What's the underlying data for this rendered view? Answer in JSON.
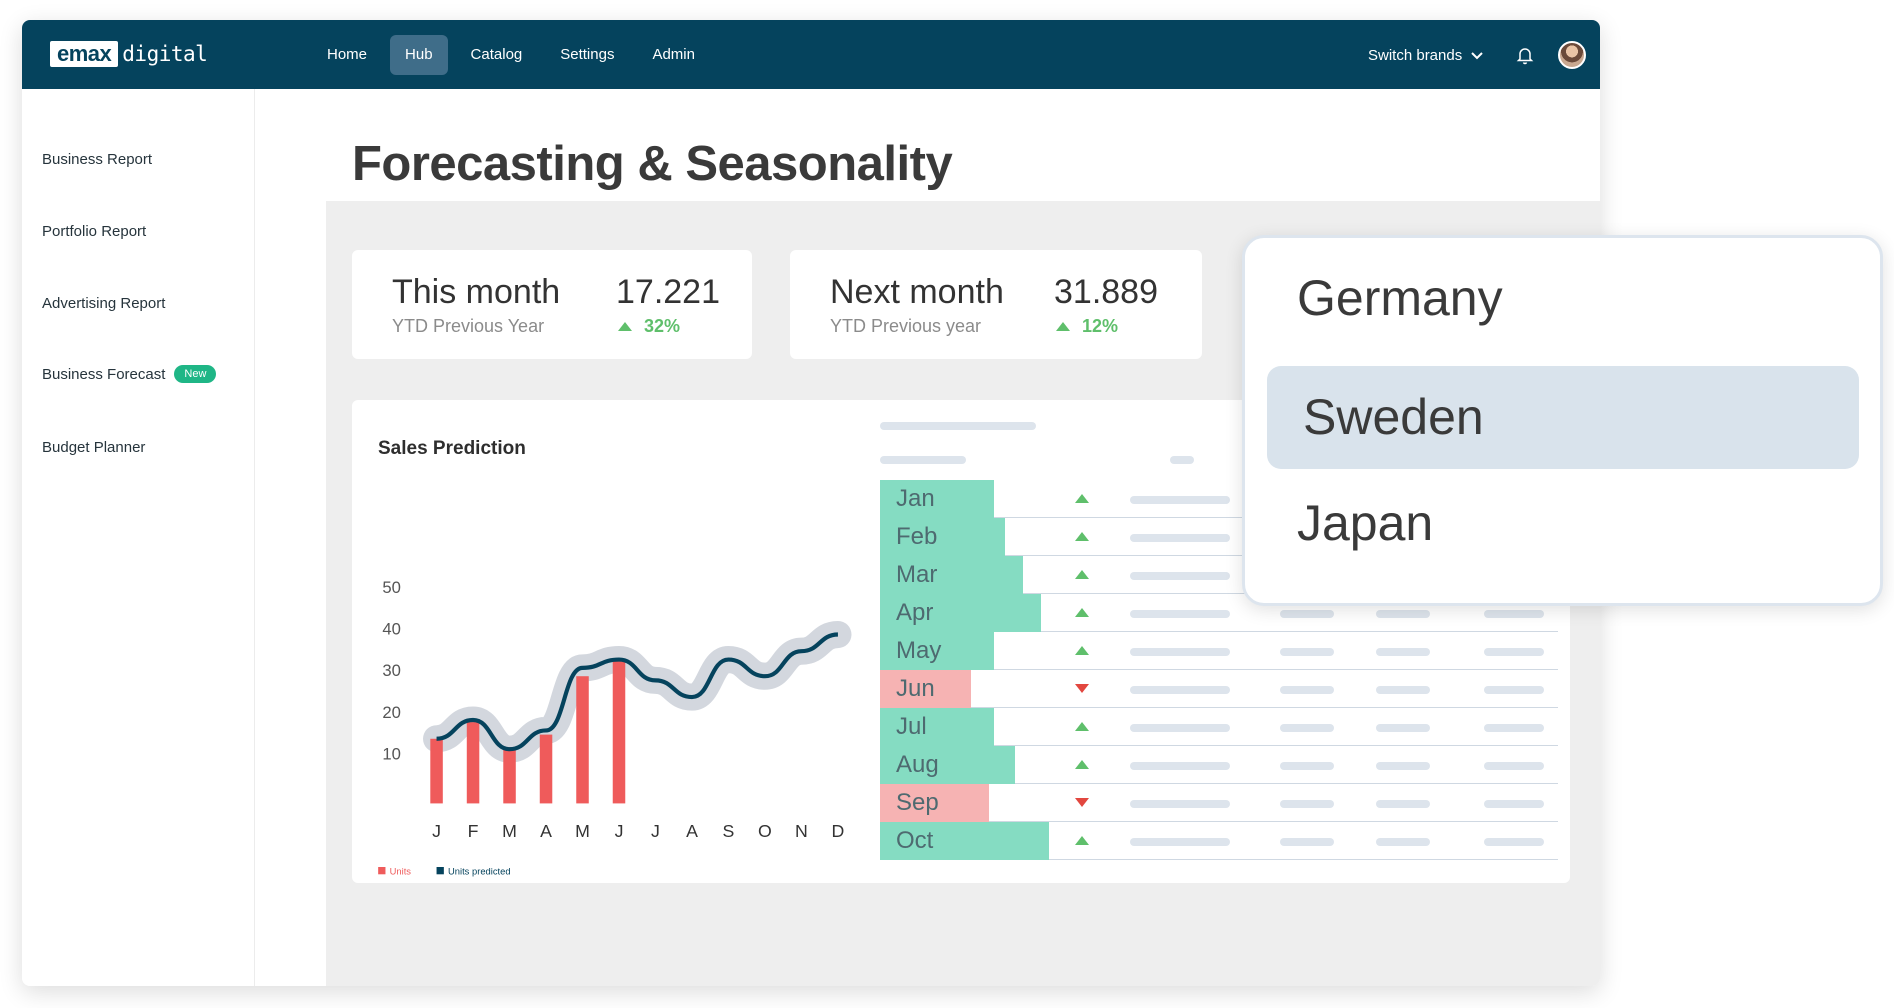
{
  "app": {
    "logo_box": "emax",
    "logo_text": "digital"
  },
  "nav": {
    "items": [
      "Home",
      "Hub",
      "Catalog",
      "Settings",
      "Admin"
    ],
    "active": "Hub",
    "switch_brands": "Switch brands"
  },
  "sidebar": {
    "items": [
      {
        "label": "Business Report"
      },
      {
        "label": "Portfolio Report"
      },
      {
        "label": "Advertising Report"
      },
      {
        "label": "Business Forecast",
        "badge": "New"
      },
      {
        "label": "Budget Planner"
      }
    ]
  },
  "page": {
    "title": "Forecasting & Seasonality"
  },
  "kpis": [
    {
      "label": "This month",
      "sub": "YTD Previous Year",
      "value": "17.221",
      "delta": "32%",
      "trend": "up"
    },
    {
      "label": "Next month",
      "sub": "YTD Previous year",
      "value": "31.889",
      "delta": "12%",
      "trend": "up"
    }
  ],
  "chart_data": {
    "type": "bar",
    "title": "Sales Prediction",
    "categories": [
      "J",
      "F",
      "M",
      "A",
      "M",
      "J",
      "J",
      "A",
      "S",
      "O",
      "N",
      "D"
    ],
    "y_ticks": [
      10,
      20,
      30,
      40,
      50
    ],
    "ylim": [
      0,
      55
    ],
    "series": [
      {
        "name": "Units",
        "type": "bar",
        "color": "#ef5b5b",
        "values": [
          14,
          18,
          12,
          15,
          29,
          33,
          null,
          null,
          null,
          null,
          null,
          null
        ]
      },
      {
        "name": "Units predicted",
        "type": "line",
        "color": "#05435d",
        "values": [
          14,
          18.5,
          11.5,
          16,
          31,
          33,
          28,
          24,
          33,
          29,
          35,
          39
        ]
      }
    ],
    "legend": "bottom-left"
  },
  "table": {
    "rows": [
      {
        "month": "Jan",
        "fill": 0.44,
        "status": "up"
      },
      {
        "month": "Feb",
        "fill": 0.48,
        "status": "up"
      },
      {
        "month": "Mar",
        "fill": 0.55,
        "status": "up"
      },
      {
        "month": "Apr",
        "fill": 0.62,
        "status": "up"
      },
      {
        "month": "May",
        "fill": 0.44,
        "status": "up"
      },
      {
        "month": "Jun",
        "fill": 0.35,
        "status": "down"
      },
      {
        "month": "Jul",
        "fill": 0.44,
        "status": "up"
      },
      {
        "month": "Aug",
        "fill": 0.52,
        "status": "up"
      },
      {
        "month": "Sep",
        "fill": 0.42,
        "status": "down"
      },
      {
        "month": "Oct",
        "fill": 0.65,
        "status": "up"
      }
    ]
  },
  "dropdown": {
    "options": [
      "Germany",
      "Sweden",
      "Japan"
    ],
    "selected": "Sweden"
  },
  "colors": {
    "up_bar": "#85dcc2",
    "down_bar": "#f6b3b3",
    "up_arrow": "#5fbf6b",
    "down_arrow": "#e2473f",
    "brand": "#05435d"
  }
}
